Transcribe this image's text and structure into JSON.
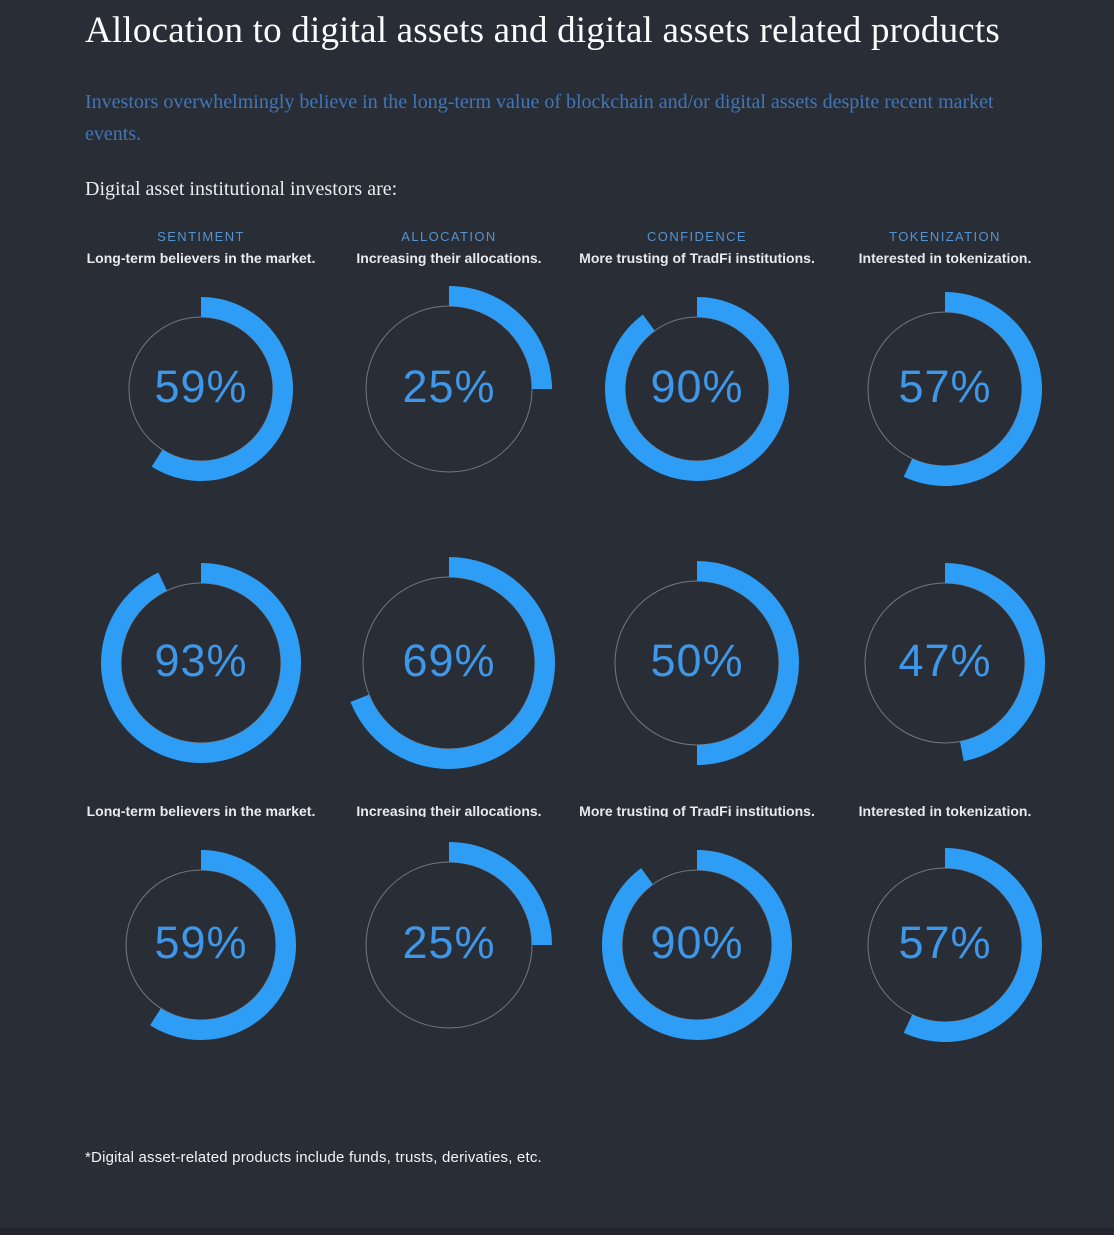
{
  "page": {
    "title": "Allocation to digital assets and digital assets related products",
    "intro": "Investors overwhelmingly believe in the long-term value of blockchain and/or digital assets despite recent market events.",
    "heading": "Digital asset institutional investors are:",
    "footnote": "*Digital asset-related products include funds, trusts, derivaties, etc."
  },
  "columns": [
    {
      "label": "SENTIMENT",
      "subtitle": "Long-term believers in the market."
    },
    {
      "label": "ALLOCATION",
      "subtitle": "Increasing their allocations."
    },
    {
      "label": "CONFIDENCE",
      "subtitle": "More trusting of TradFi institutions."
    },
    {
      "label": "TOKENIZATION",
      "subtitle": "Interested in tokenization."
    }
  ],
  "chart_data": {
    "type": "pie",
    "variant": "progress-donut-grid",
    "unit": "%",
    "categories": [
      "SENTIMENT",
      "ALLOCATION",
      "CONFIDENCE",
      "TOKENIZATION"
    ],
    "category_subtitles": [
      "Long-term believers in the market.",
      "Increasing their allocations.",
      "More trusting of TradFi institutions.",
      "Interested in tokenization."
    ],
    "series": [
      {
        "name": "row-1",
        "values": [
          59,
          25,
          90,
          57
        ]
      },
      {
        "name": "row-2",
        "values": [
          93,
          69,
          50,
          47
        ]
      },
      {
        "name": "row-3",
        "values": [
          59,
          25,
          90,
          57
        ]
      }
    ],
    "arc_start_deg": 0,
    "arc_direction": "clockwise",
    "track_radii": [
      [
        72,
        83,
        72,
        77
      ],
      [
        80,
        86,
        82,
        80
      ],
      [
        75,
        83,
        75,
        77
      ]
    ],
    "colors": {
      "arc": "#2E9DF5",
      "track": "#8A909A",
      "percent_text": "#3E97E8"
    }
  },
  "colors": {
    "background": "#292D36",
    "title": "#FAFBFB",
    "intro": "#4076B8",
    "heading": "#E9ECEF",
    "column_label": "#5493D1",
    "column_subtitle": "#E8EAED",
    "footnote": "#F2F4F5",
    "bottom_strip": "#222530"
  }
}
